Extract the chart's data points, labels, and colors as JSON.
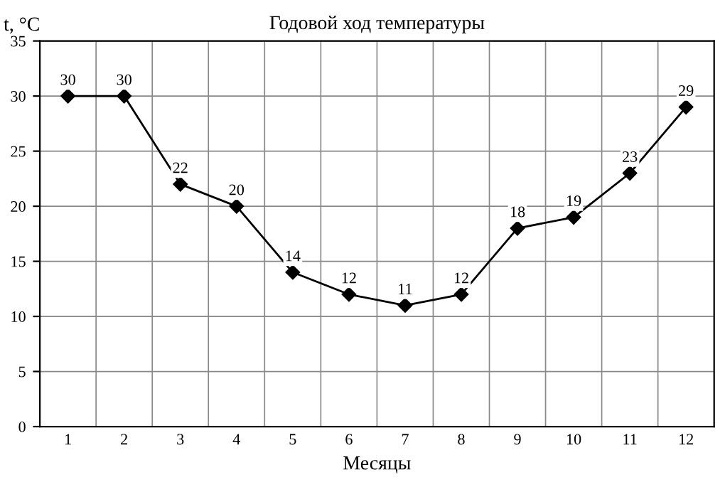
{
  "chart_data": {
    "type": "line",
    "title": "Годовой ход температуры",
    "xlabel": "Месяцы",
    "ylabel": "t, °C",
    "categories": [
      "1",
      "2",
      "3",
      "4",
      "5",
      "6",
      "7",
      "8",
      "9",
      "10",
      "11",
      "12"
    ],
    "series": [
      {
        "color": "#000000",
        "values": [
          30,
          30,
          22,
          20,
          14,
          12,
          11,
          12,
          18,
          19,
          23,
          29
        ]
      }
    ],
    "ylim": [
      0,
      35
    ],
    "yticks": [
      0,
      5,
      10,
      15,
      20,
      25,
      30,
      35
    ],
    "grid": true,
    "marker": "diamond",
    "line_style": "solid",
    "data_labels": true
  }
}
